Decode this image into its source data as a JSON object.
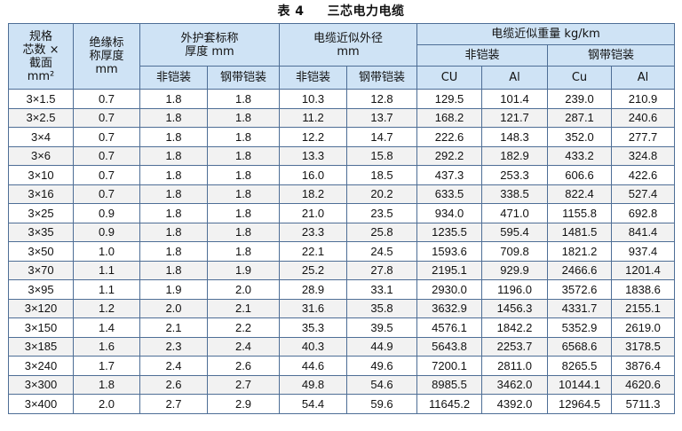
{
  "title": {
    "table_no": "表 4",
    "name": "三芯电力电缆"
  },
  "headers": {
    "spec": [
      "规格",
      "芯数 ×",
      "截面",
      "mm²"
    ],
    "insulation": [
      "绝缘标",
      "称厚度",
      "mm"
    ],
    "sheath": [
      "外护套标称",
      "厚度 mm"
    ],
    "outer_diameter": [
      "电缆近似外径",
      "mm"
    ],
    "weight": "电缆近似重量 kg/km",
    "weight_unarmored": "非铠装",
    "weight_steel_tape": "钢带铠装",
    "sheath_unarmored": "非铠装",
    "sheath_steel_tape": "钢带铠装",
    "od_unarmored": "非铠装",
    "od_steel_tape": "钢带铠装",
    "w_un_cu": "CU",
    "w_un_al": "Al",
    "w_st_cu": "Cu",
    "w_st_al": "Al"
  },
  "rows": [
    [
      "3×1.5",
      "0.7",
      "1.8",
      "1.8",
      "10.3",
      "12.8",
      "129.5",
      "101.4",
      "239.0",
      "210.9"
    ],
    [
      "3×2.5",
      "0.7",
      "1.8",
      "1.8",
      "11.2",
      "13.7",
      "168.2",
      "121.7",
      "287.1",
      "240.6"
    ],
    [
      "3×4",
      "0.7",
      "1.8",
      "1.8",
      "12.2",
      "14.7",
      "222.6",
      "148.3",
      "352.0",
      "277.7"
    ],
    [
      "3×6",
      "0.7",
      "1.8",
      "1.8",
      "13.3",
      "15.8",
      "292.2",
      "182.9",
      "433.2",
      "324.8"
    ],
    [
      "3×10",
      "0.7",
      "1.8",
      "1.8",
      "16.0",
      "18.5",
      "437.3",
      "253.3",
      "606.6",
      "422.6"
    ],
    [
      "3×16",
      "0.7",
      "1.8",
      "1.8",
      "18.2",
      "20.2",
      "633.5",
      "338.5",
      "822.4",
      "527.4"
    ],
    [
      "3×25",
      "0.9",
      "1.8",
      "1.8",
      "21.0",
      "23.5",
      "934.0",
      "471.0",
      "1155.8",
      "692.8"
    ],
    [
      "3×35",
      "0.9",
      "1.8",
      "1.8",
      "23.3",
      "25.8",
      "1235.5",
      "595.4",
      "1481.5",
      "841.4"
    ],
    [
      "3×50",
      "1.0",
      "1.8",
      "1.8",
      "22.1",
      "24.5",
      "1593.6",
      "709.8",
      "1821.2",
      "937.4"
    ],
    [
      "3×70",
      "1.1",
      "1.8",
      "1.9",
      "25.2",
      "27.8",
      "2195.1",
      "929.9",
      "2466.6",
      "1201.4"
    ],
    [
      "3×95",
      "1.1",
      "1.9",
      "2.0",
      "28.9",
      "33.1",
      "2930.0",
      "1196.0",
      "3572.6",
      "1838.6"
    ],
    [
      "3×120",
      "1.2",
      "2.0",
      "2.1",
      "31.6",
      "35.8",
      "3632.9",
      "1456.3",
      "4331.7",
      "2155.1"
    ],
    [
      "3×150",
      "1.4",
      "2.1",
      "2.2",
      "35.3",
      "39.5",
      "4576.1",
      "1842.2",
      "5352.9",
      "2619.0"
    ],
    [
      "3×185",
      "1.6",
      "2.3",
      "2.4",
      "40.3",
      "44.9",
      "5643.8",
      "2253.7",
      "6568.6",
      "3178.5"
    ],
    [
      "3×240",
      "1.7",
      "2.4",
      "2.6",
      "44.6",
      "49.6",
      "7200.1",
      "2811.0",
      "8265.5",
      "3876.4"
    ],
    [
      "3×300",
      "1.8",
      "2.6",
      "2.7",
      "49.8",
      "54.6",
      "8985.5",
      "3462.0",
      "10144.1",
      "4620.6"
    ],
    [
      "3×400",
      "2.0",
      "2.7",
      "2.9",
      "54.4",
      "59.6",
      "11645.2",
      "4392.0",
      "12964.5",
      "5711.3"
    ]
  ]
}
